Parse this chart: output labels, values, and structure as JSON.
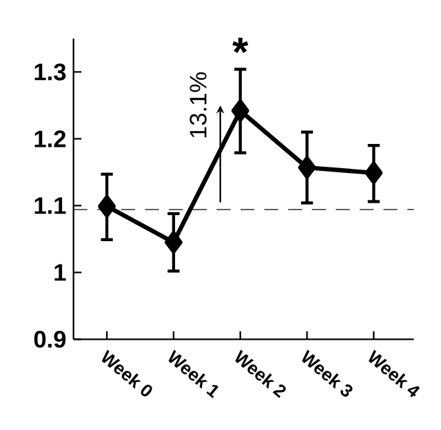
{
  "chart_data": {
    "type": "line",
    "categories": [
      "Week 0",
      "Week 1",
      "Week 2",
      "Week 3",
      "Week 4"
    ],
    "values": [
      1.099,
      1.045,
      1.242,
      1.157,
      1.149
    ],
    "errors": [
      [
        1.049,
        1.147
      ],
      [
        1.002,
        1.088
      ],
      [
        1.179,
        1.304
      ],
      [
        1.104,
        1.21
      ],
      [
        1.106,
        1.19
      ]
    ],
    "color": "#000000",
    "marker": "diamond",
    "line_style": "solid",
    "ylim": [
      0.9,
      1.35
    ],
    "yticks": [
      0.9,
      1,
      1.1,
      1.2,
      1.3
    ],
    "ref_lines": [
      {
        "axis": "y",
        "value": 1.094,
        "line_style": "dashed",
        "color": "#000000"
      }
    ],
    "annotations": [
      "13.1%",
      "*"
    ]
  }
}
